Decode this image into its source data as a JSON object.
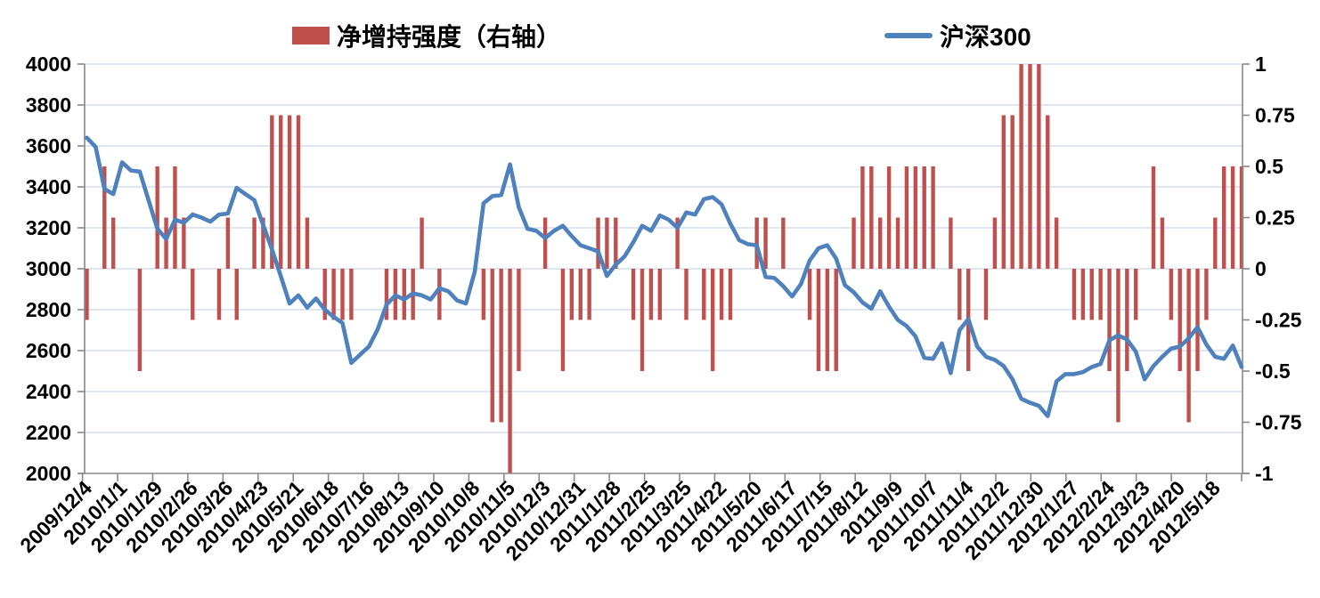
{
  "legend": {
    "bar_label": "净增持强度（右轴）",
    "line_label": "沪深300"
  },
  "chart_data": {
    "type": "combo",
    "title": "",
    "xlabel": "",
    "ylabel_left": "",
    "ylabel_right": "",
    "axis": {
      "left_ylim": [
        2000,
        4000
      ],
      "left_tick_labels": [
        "4000",
        "3800",
        "3600",
        "3400",
        "3200",
        "3000",
        "2800",
        "2600",
        "2400",
        "2200",
        "2000"
      ],
      "right_ylim": [
        -1,
        1
      ],
      "right_tick_labels": [
        "1",
        "0.75",
        "0.5",
        "0.25",
        "0",
        "-0.25",
        "-0.5",
        "-0.75",
        "-1"
      ],
      "grid": true,
      "legend_position": "top"
    },
    "x_tick_labels": [
      "2009/12/4",
      "2010/1/1",
      "2010/1/29",
      "2010/2/26",
      "2010/3/26",
      "2010/4/23",
      "2010/5/21",
      "2010/6/18",
      "2010/7/16",
      "2010/8/13",
      "2010/9/10",
      "2010/10/8",
      "2010/11/5",
      "2010/12/3",
      "2010/12/31",
      "2011/1/28",
      "2011/2/25",
      "2011/3/25",
      "2011/4/22",
      "2011/5/20",
      "2011/6/17",
      "2011/7/15",
      "2011/8/12",
      "2011/9/9",
      "2011/10/7",
      "2011/11/4",
      "2011/12/2",
      "2011/12/30",
      "2012/1/27",
      "2012/2/24",
      "2012/3/23",
      "2012/4/20",
      "2012/5/18"
    ],
    "x_tick_every": 4,
    "categories": [
      "2009/12/4",
      "2009/12/11",
      "2009/12/18",
      "2009/12/25",
      "2010/1/1",
      "2010/1/8",
      "2010/1/15",
      "2010/1/22",
      "2010/1/29",
      "2010/2/5",
      "2010/2/12",
      "2010/2/19",
      "2010/2/26",
      "2010/3/5",
      "2010/3/12",
      "2010/3/19",
      "2010/3/26",
      "2010/4/2",
      "2010/4/9",
      "2010/4/16",
      "2010/4/23",
      "2010/4/30",
      "2010/5/7",
      "2010/5/14",
      "2010/5/21",
      "2010/5/28",
      "2010/6/4",
      "2010/6/11",
      "2010/6/18",
      "2010/6/25",
      "2010/7/2",
      "2010/7/9",
      "2010/7/16",
      "2010/7/23",
      "2010/7/30",
      "2010/8/6",
      "2010/8/13",
      "2010/8/20",
      "2010/8/27",
      "2010/9/3",
      "2010/9/10",
      "2010/9/17",
      "2010/9/24",
      "2010/10/1",
      "2010/10/8",
      "2010/10/15",
      "2010/10/22",
      "2010/10/29",
      "2010/11/5",
      "2010/11/12",
      "2010/11/19",
      "2010/11/26",
      "2010/12/3",
      "2010/12/10",
      "2010/12/17",
      "2010/12/24",
      "2010/12/31",
      "2011/1/7",
      "2011/1/14",
      "2011/1/21",
      "2011/1/28",
      "2011/2/4",
      "2011/2/11",
      "2011/2/18",
      "2011/2/25",
      "2011/3/4",
      "2011/3/11",
      "2011/3/18",
      "2011/3/25",
      "2011/4/1",
      "2011/4/8",
      "2011/4/15",
      "2011/4/22",
      "2011/4/29",
      "2011/5/6",
      "2011/5/13",
      "2011/5/20",
      "2011/5/27",
      "2011/6/3",
      "2011/6/10",
      "2011/6/17",
      "2011/6/24",
      "2011/7/1",
      "2011/7/8",
      "2011/7/15",
      "2011/7/22",
      "2011/7/29",
      "2011/8/5",
      "2011/8/12",
      "2011/8/19",
      "2011/8/26",
      "2011/9/2",
      "2011/9/9",
      "2011/9/16",
      "2011/9/23",
      "2011/9/30",
      "2011/10/7",
      "2011/10/14",
      "2011/10/21",
      "2011/10/28",
      "2011/11/4",
      "2011/11/11",
      "2011/11/18",
      "2011/11/25",
      "2011/12/2",
      "2011/12/9",
      "2011/12/16",
      "2011/12/23",
      "2011/12/30",
      "2012/1/6",
      "2012/1/13",
      "2012/1/20",
      "2012/1/27",
      "2012/2/3",
      "2012/2/10",
      "2012/2/17",
      "2012/2/24",
      "2012/3/2",
      "2012/3/9",
      "2012/3/16",
      "2012/3/23",
      "2012/3/30",
      "2012/4/6",
      "2012/4/13",
      "2012/4/20",
      "2012/4/27",
      "2012/5/4",
      "2012/5/11",
      "2012/5/18",
      "2012/5/25",
      "2012/6/1",
      "2012/6/8"
    ],
    "series": [
      {
        "name": "净增持强度（右轴）",
        "type": "bar",
        "axis": "right",
        "color": "#C0504D",
        "values": [
          -0.25,
          0,
          0.5,
          0.25,
          0,
          0,
          -0.5,
          0,
          0.5,
          0.25,
          0.5,
          0.25,
          -0.25,
          0,
          0,
          -0.25,
          0.25,
          -0.25,
          0,
          0.25,
          0.25,
          0.75,
          0.75,
          0.75,
          0.75,
          0.25,
          0,
          -0.25,
          -0.25,
          -0.25,
          -0.25,
          0,
          0,
          0,
          -0.25,
          -0.25,
          -0.25,
          -0.25,
          0.25,
          0,
          -0.25,
          0,
          0,
          0,
          0,
          -0.25,
          -0.75,
          -0.75,
          -1,
          -0.5,
          0,
          0,
          0.25,
          0,
          -0.5,
          -0.25,
          -0.25,
          -0.25,
          0.25,
          0.25,
          0.25,
          0,
          -0.25,
          -0.5,
          -0.25,
          -0.25,
          0,
          0.25,
          -0.25,
          0,
          -0.25,
          -0.5,
          -0.25,
          -0.25,
          0,
          0,
          0.25,
          0.25,
          0,
          0.25,
          0,
          0,
          -0.25,
          -0.5,
          -0.5,
          -0.5,
          0,
          0.25,
          0.5,
          0.5,
          0.25,
          0.5,
          0.25,
          0.5,
          0.5,
          0.5,
          0.5,
          0,
          0.25,
          -0.25,
          -0.5,
          0,
          -0.25,
          0.25,
          0.75,
          0.75,
          1,
          1,
          1,
          0.75,
          0.25,
          0,
          -0.25,
          -0.25,
          -0.25,
          -0.25,
          -0.5,
          -0.75,
          -0.5,
          -0.25,
          0,
          0.5,
          0.25,
          -0.25,
          -0.5,
          -0.75,
          -0.5,
          -0.25,
          0.25,
          0.5,
          0.5,
          0.5
        ]
      },
      {
        "name": "沪深300",
        "type": "line",
        "axis": "left",
        "color": "#4F81BD",
        "values": [
          3640,
          3595,
          3390,
          3365,
          3520,
          3480,
          3475,
          3335,
          3195,
          3145,
          3240,
          3225,
          3265,
          3250,
          3230,
          3265,
          3270,
          3395,
          3365,
          3335,
          3215,
          3095,
          2965,
          2830,
          2870,
          2810,
          2855,
          2800,
          2765,
          2735,
          2540,
          2580,
          2620,
          2705,
          2825,
          2870,
          2850,
          2880,
          2870,
          2850,
          2905,
          2890,
          2845,
          2830,
          2985,
          3320,
          3355,
          3360,
          3510,
          3300,
          3195,
          3185,
          3150,
          3185,
          3210,
          3160,
          3115,
          3100,
          3085,
          2965,
          3020,
          3060,
          3130,
          3210,
          3185,
          3260,
          3240,
          3200,
          3275,
          3265,
          3340,
          3350,
          3315,
          3220,
          3140,
          3120,
          3115,
          2960,
          2955,
          2915,
          2865,
          2925,
          3040,
          3100,
          3115,
          3050,
          2920,
          2885,
          2835,
          2805,
          2890,
          2815,
          2750,
          2720,
          2670,
          2565,
          2560,
          2635,
          2490,
          2700,
          2755,
          2620,
          2570,
          2555,
          2525,
          2460,
          2365,
          2345,
          2330,
          2280,
          2450,
          2485,
          2485,
          2495,
          2520,
          2535,
          2650,
          2675,
          2655,
          2595,
          2460,
          2525,
          2570,
          2610,
          2620,
          2660,
          2715,
          2630,
          2570,
          2560,
          2625,
          2520
        ]
      }
    ],
    "colors": {
      "bar": "#C0504D",
      "line": "#4F81BD",
      "gridline": "#C9D7EE",
      "axis": "#898989",
      "text": "#000000"
    }
  }
}
